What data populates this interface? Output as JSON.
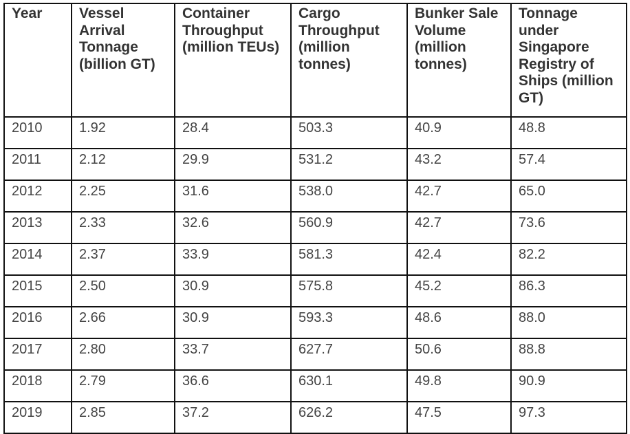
{
  "table": {
    "header": [
      "Year",
      "Vessel Arrival Tonnage (billion GT)",
      "Container Throughput (million TEUs)",
      "Cargo Throughput (million tonnes)",
      "Bunker Sale Volume (million tonnes)",
      "Tonnage under Singapore Registry of Ships (million GT)"
    ],
    "rows": [
      [
        "2010",
        "1.92",
        "28.4",
        "503.3",
        "40.9",
        "48.8"
      ],
      [
        "2011",
        "2.12",
        "29.9",
        "531.2",
        "43.2",
        "57.4"
      ],
      [
        "2012",
        "2.25",
        "31.6",
        "538.0",
        "42.7",
        "65.0"
      ],
      [
        "2013",
        "2.33",
        "32.6",
        "560.9",
        "42.7",
        "73.6"
      ],
      [
        "2014",
        "2.37",
        "33.9",
        "581.3",
        "42.4",
        "82.2"
      ],
      [
        "2015",
        "2.50",
        "30.9",
        "575.8",
        "45.2",
        "86.3"
      ],
      [
        "2016",
        "2.66",
        "30.9",
        "593.3",
        "48.6",
        "88.0"
      ],
      [
        "2017",
        "2.80",
        "33.7",
        "627.7",
        "50.6",
        "88.8"
      ],
      [
        "2018",
        "2.79",
        "36.6",
        "630.1",
        "49.8",
        "90.9"
      ],
      [
        "2019",
        "2.85",
        "37.2",
        "626.2",
        "47.5",
        "97.3"
      ]
    ]
  }
}
